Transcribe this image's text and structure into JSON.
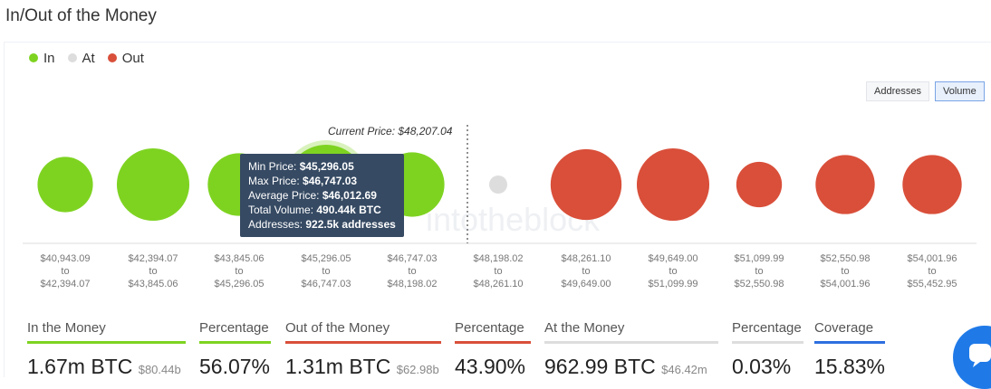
{
  "title": "In/Out of the Money",
  "legend": [
    {
      "label": "In",
      "color": "#7ed321"
    },
    {
      "label": "At",
      "color": "#dddddd"
    },
    {
      "label": "Out",
      "color": "#d94f3a"
    }
  ],
  "toggles": {
    "addresses": "Addresses",
    "volume": "Volume",
    "active": "volume"
  },
  "current_price": "Current Price: $48,207.04",
  "watermark": "intotheblock",
  "buckets": [
    {
      "from": "$40,943.09",
      "to": "$42,394.07",
      "status": "in",
      "volume": 140
    },
    {
      "from": "$42,394.07",
      "to": "$43,845.06",
      "status": "in",
      "volume": 240
    },
    {
      "from": "$43,845.06",
      "to": "$45,296.05",
      "status": "in",
      "volume": 180
    },
    {
      "from": "$45,296.05",
      "to": "$46,747.03",
      "status": "in",
      "volume": 290
    },
    {
      "from": "$46,747.03",
      "to": "$48,198.02",
      "status": "in",
      "volume": 190
    },
    {
      "from": "$48,198.02",
      "to": "$48,261.10",
      "status": "at",
      "volume": 1
    },
    {
      "from": "$48,261.10",
      "to": "$49,649.00",
      "status": "out",
      "volume": 230
    },
    {
      "from": "$49,649.00",
      "to": "$51,099.99",
      "status": "out",
      "volume": 240
    },
    {
      "from": "$51,099.99",
      "to": "$52,550.98",
      "status": "out",
      "volume": 95
    },
    {
      "from": "$52,550.98",
      "to": "$54,001.96",
      "status": "out",
      "volume": 160
    },
    {
      "from": "$54,001.96",
      "to": "$55,452.95",
      "status": "out",
      "volume": 160
    }
  ],
  "to_word": "to",
  "tooltip": {
    "rows": [
      {
        "k": "Min Price: ",
        "v": "$45,296.05"
      },
      {
        "k": "Max Price: ",
        "v": "$46,747.03"
      },
      {
        "k": "Average Price: ",
        "v": "$46,012.69"
      },
      {
        "k": "Total Volume: ",
        "v": "490.44k BTC"
      },
      {
        "k": "Addresses: ",
        "v": "922.5k addresses"
      }
    ]
  },
  "stats": [
    {
      "label": "In the Money",
      "value": "1.67m BTC",
      "sub": "$80.44b",
      "color": "#7ed321"
    },
    {
      "label": "Percentage",
      "value": "56.07%",
      "sub": "",
      "color": "#7ed321"
    },
    {
      "label": "Out of the Money",
      "value": "1.31m BTC",
      "sub": "$62.98b",
      "color": "#d94f3a"
    },
    {
      "label": "Percentage",
      "value": "43.90%",
      "sub": "",
      "color": "#d94f3a"
    },
    {
      "label": "At the Money",
      "value": "962.99 BTC",
      "sub": "$46.42m",
      "color": "#dddddd"
    },
    {
      "label": "Percentage",
      "value": "0.03%",
      "sub": "",
      "color": "#dddddd"
    },
    {
      "label": "Coverage",
      "value": "15.83%",
      "sub": "",
      "color": "#2d6fe0"
    }
  ]
}
